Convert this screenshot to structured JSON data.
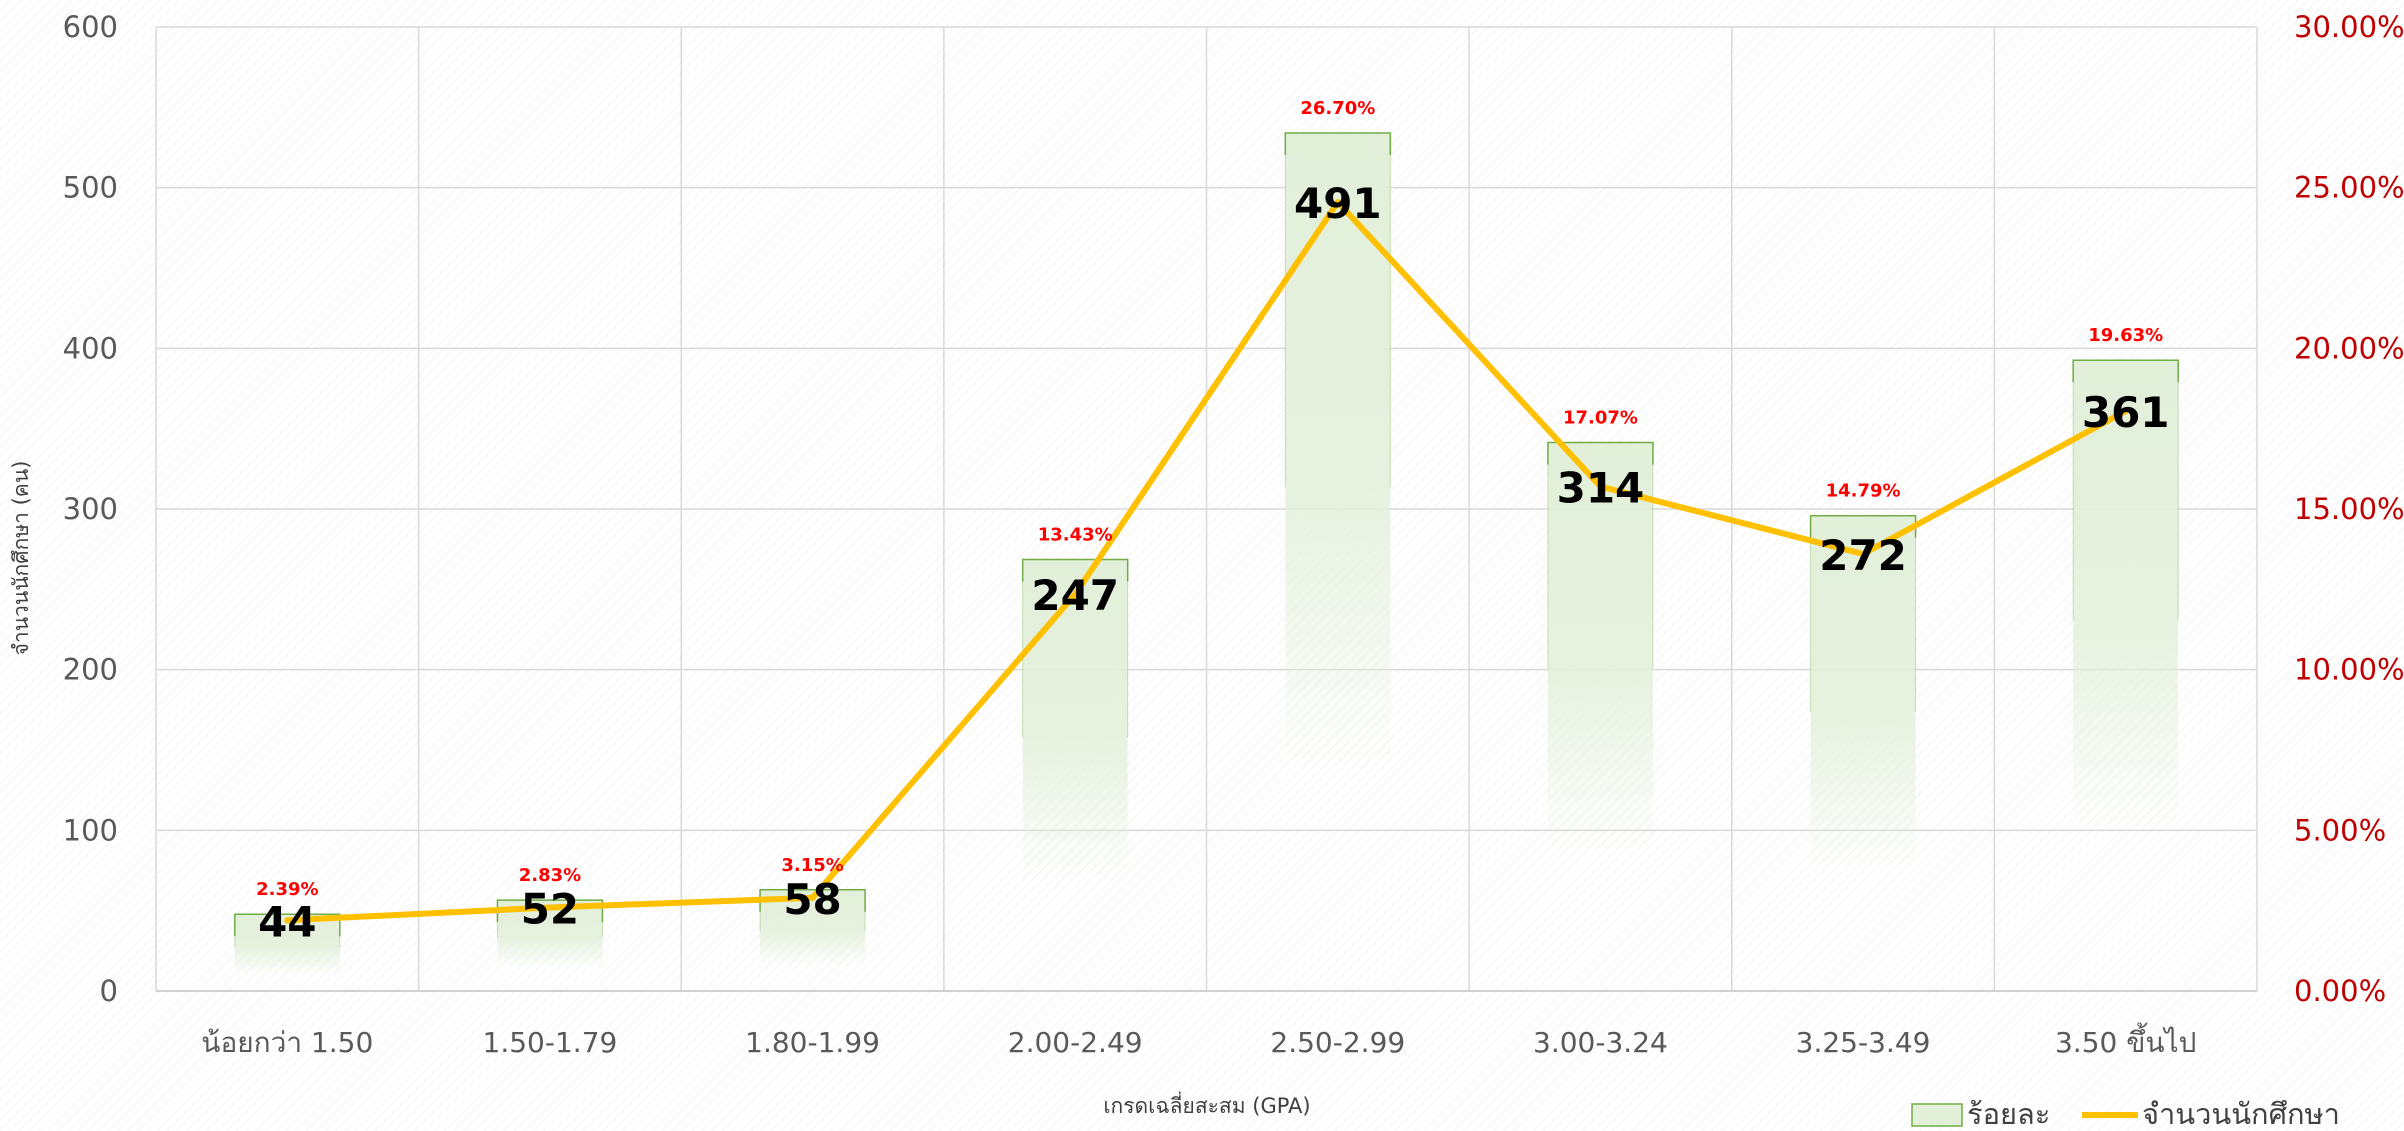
{
  "chart_data": {
    "type": "bar",
    "categories": [
      "น้อยกว่า 1.50",
      "1.50-1.79",
      "1.80-1.99",
      "2.00-2.49",
      "2.50-2.99",
      "3.00-3.24",
      "3.25-3.49",
      "3.50 ขึ้นไป"
    ],
    "series": [
      {
        "name": "ร้อยละ",
        "type": "bar",
        "axis": "right",
        "values": [
          2.39,
          2.83,
          3.15,
          13.43,
          26.7,
          17.07,
          14.79,
          19.63
        ],
        "labels": [
          "2.39%",
          "2.83%",
          "3.15%",
          "13.43%",
          "26.70%",
          "17.07%",
          "14.79%",
          "19.63%"
        ]
      },
      {
        "name": "จำนวนนักศึกษา",
        "type": "line",
        "axis": "left",
        "values": [
          44,
          52,
          58,
          247,
          491,
          314,
          272,
          361
        ],
        "labels": [
          "44",
          "52",
          "58",
          "247",
          "491",
          "314",
          "272",
          "361"
        ]
      }
    ],
    "xlabel": "เกรดเฉลี่ยสะสม (GPA)",
    "ylabel": "จำนวนนักศึกษา (คน)",
    "ylim": [
      0,
      600
    ],
    "yticks": [
      "0",
      "100",
      "200",
      "300",
      "400",
      "500",
      "600"
    ],
    "y2lim": [
      0,
      30
    ],
    "y2ticks": [
      "0.00%",
      "5.00%",
      "10.00%",
      "15.00%",
      "20.00%",
      "25.00%",
      "30.00%"
    ],
    "grid": true,
    "legend": "bottom-right",
    "colors": {
      "bar_fill": "#e2efd9",
      "bar_stroke": "#70ad47",
      "line": "#ffc000",
      "count_label": "#000000",
      "pct_label": "#ff0000",
      "right_axis": "#c00000",
      "grid": "#d9d9d9"
    }
  }
}
